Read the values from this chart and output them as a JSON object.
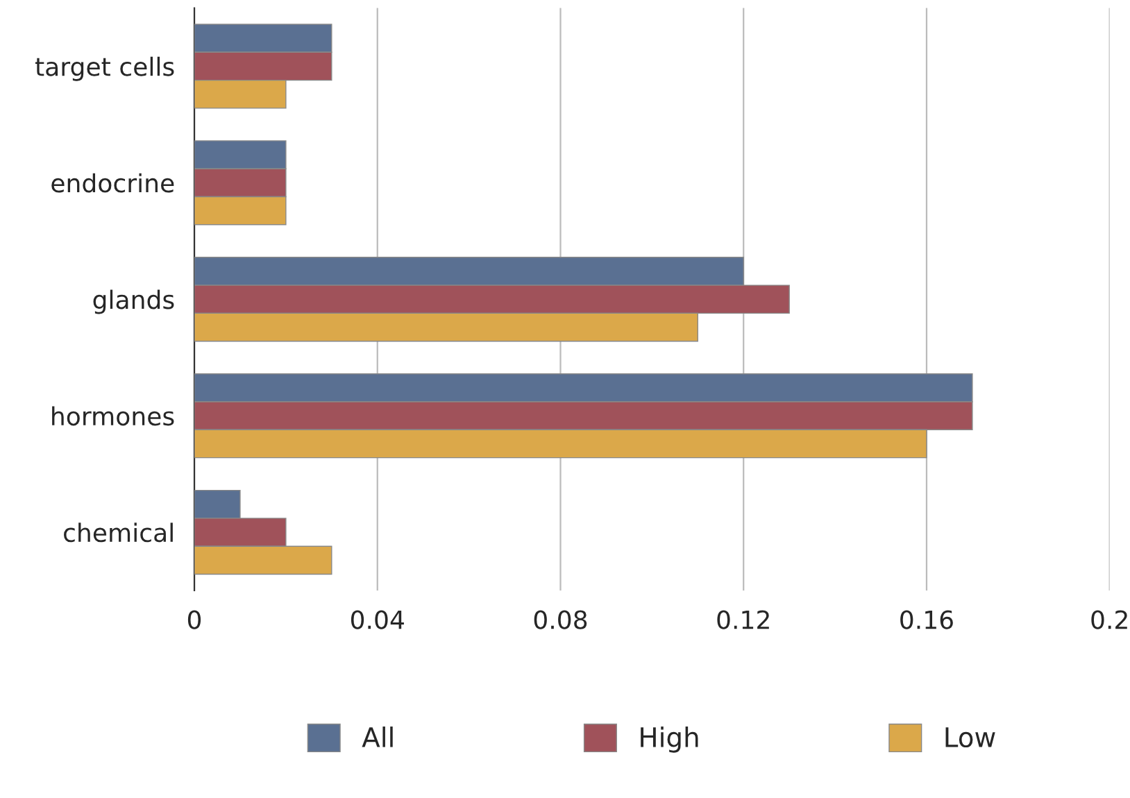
{
  "chart_data": {
    "type": "bar",
    "orientation": "horizontal",
    "categories": [
      "target cells",
      "endocrine",
      "glands",
      "hormones",
      "chemical"
    ],
    "series": [
      {
        "name": "All",
        "color": "#5a7092",
        "values": [
          0.03,
          0.02,
          0.12,
          0.17,
          0.01
        ]
      },
      {
        "name": "High",
        "color": "#a0525a",
        "values": [
          0.03,
          0.02,
          0.13,
          0.17,
          0.02
        ]
      },
      {
        "name": "Low",
        "color": "#dba84a",
        "values": [
          0.02,
          0.02,
          0.11,
          0.16,
          0.03
        ]
      }
    ],
    "xlim": [
      0,
      0.2
    ],
    "xticks": [
      0,
      0.04,
      0.08,
      0.12,
      0.16,
      0.2
    ],
    "grid": "x",
    "legend": "bottom"
  }
}
